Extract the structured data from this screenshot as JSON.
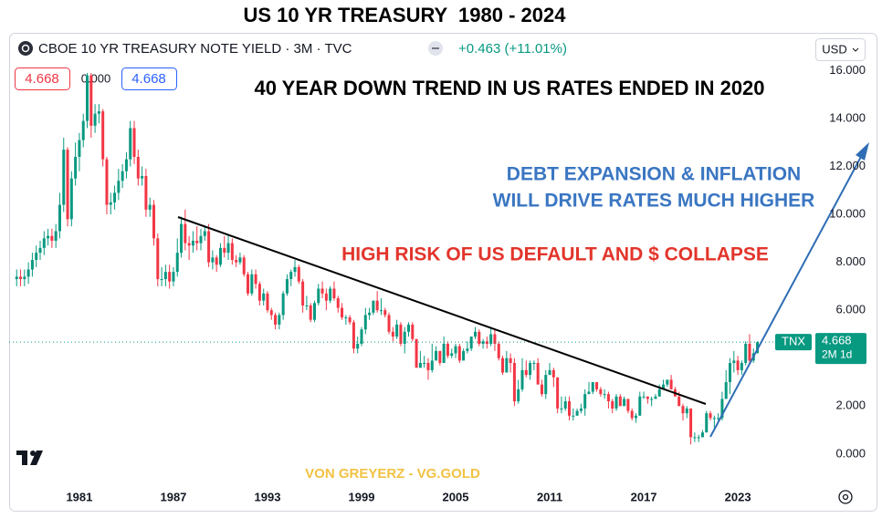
{
  "header": {
    "title": "US 10 YR TREASURY  1980 - 2024",
    "symbol": "CBOE 10 YR TREASURY NOTE YIELD · 3M · TVC",
    "change": "+0.463 (+11.01%)",
    "currency": "USD",
    "spread": "0.000",
    "ticker": "TNX",
    "countdown": "2M 1d"
  },
  "chart_data": {
    "type": "candlestick",
    "annotations": [
      "40 YEAR DOWN TREND IN US RATES ENDED IN 2020",
      "DEBT EXPANSION & INFLATION",
      "WILL DRIVE RATES MUCH HIGHER",
      "HIGH RISK OF US DEFAULT AND $ COLLAPSE",
      "VON GREYERZ - VG.GOLD"
    ],
    "up_color": "#089981",
    "down_color": "#f23645",
    "xlim": [
      1976.52,
      2027.77
    ],
    "xticks": [
      1981,
      1987,
      1993,
      1999,
      2005,
      2011,
      2017,
      2023
    ],
    "ylim": [
      -1.3,
      17.5
    ],
    "yticks": [
      {
        "value": 0,
        "label": "0.000"
      },
      {
        "value": 2,
        "label": "2.000"
      },
      {
        "value": 4,
        "label": "4.000"
      },
      {
        "value": 6,
        "label": "6.000"
      },
      {
        "value": 8,
        "label": "8.000"
      },
      {
        "value": 10,
        "label": "10.000"
      },
      {
        "value": 12,
        "label": "12.000"
      },
      {
        "value": 14,
        "label": "14.000"
      },
      {
        "value": 16,
        "label": "16.000"
      }
    ],
    "grid": false,
    "x": [
      1977,
      1977.25,
      1977.5,
      1977.75,
      1978,
      1978.25,
      1978.5,
      1978.75,
      1979,
      1979.25,
      1979.5,
      1979.75,
      1980,
      1980.25,
      1980.5,
      1980.75,
      1981,
      1981.25,
      1981.5,
      1981.75,
      1982,
      1982.25,
      1982.5,
      1982.75,
      1983,
      1983.25,
      1983.5,
      1983.75,
      1984,
      1984.25,
      1984.5,
      1984.75,
      1985,
      1985.25,
      1985.5,
      1985.75,
      1986,
      1986.25,
      1986.5,
      1986.75,
      1987,
      1987.25,
      1987.5,
      1987.75,
      1988,
      1988.25,
      1988.5,
      1988.75,
      1989,
      1989.25,
      1989.5,
      1989.75,
      1990,
      1990.25,
      1990.5,
      1990.75,
      1991,
      1991.25,
      1991.5,
      1991.75,
      1992,
      1992.25,
      1992.5,
      1992.75,
      1993,
      1993.25,
      1993.5,
      1993.75,
      1994,
      1994.25,
      1994.5,
      1994.75,
      1995,
      1995.25,
      1995.5,
      1995.75,
      1996,
      1996.25,
      1996.5,
      1996.75,
      1997,
      1997.25,
      1997.5,
      1997.75,
      1998,
      1998.25,
      1998.5,
      1998.75,
      1999,
      1999.25,
      1999.5,
      1999.75,
      2000,
      2000.25,
      2000.5,
      2000.75,
      2001,
      2001.25,
      2001.5,
      2001.75,
      2002,
      2002.25,
      2002.5,
      2002.75,
      2003,
      2003.25,
      2003.5,
      2003.75,
      2004,
      2004.25,
      2004.5,
      2004.75,
      2005,
      2005.25,
      2005.5,
      2005.75,
      2006,
      2006.25,
      2006.5,
      2006.75,
      2007,
      2007.25,
      2007.5,
      2007.75,
      2008,
      2008.25,
      2008.5,
      2008.75,
      2009,
      2009.25,
      2009.5,
      2009.75,
      2010,
      2010.25,
      2010.5,
      2010.75,
      2011,
      2011.25,
      2011.5,
      2011.75,
      2012,
      2012.25,
      2012.5,
      2012.75,
      2013,
      2013.25,
      2013.5,
      2013.75,
      2014,
      2014.25,
      2014.5,
      2014.75,
      2015,
      2015.25,
      2015.5,
      2015.75,
      2016,
      2016.25,
      2016.5,
      2016.75,
      2017,
      2017.25,
      2017.5,
      2017.75,
      2018,
      2018.25,
      2018.5,
      2018.75,
      2019,
      2019.25,
      2019.5,
      2019.75,
      2020,
      2020.25,
      2020.5,
      2020.75,
      2021,
      2021.25,
      2021.5,
      2021.75,
      2022,
      2022.25,
      2022.5,
      2022.75,
      2023,
      2023.25,
      2023.5,
      2023.75,
      2024,
      2024.25
    ],
    "open": [
      7.3,
      7.4,
      7.3,
      7.4,
      7.7,
      8.1,
      8.4,
      8.6,
      9.0,
      9.1,
      8.9,
      9.3,
      10.4,
      12.7,
      9.8,
      11.5,
      12.4,
      13.1,
      13.9,
      15.8,
      13.7,
      14.2,
      14.3,
      12.3,
      10.4,
      10.5,
      10.9,
      11.4,
      11.8,
      12.3,
      13.6,
      12.4,
      11.5,
      11.6,
      10.2,
      10.4,
      9.0,
      7.3,
      7.3,
      7.6,
      7.2,
      7.6,
      8.4,
      9.6,
      8.8,
      8.7,
      8.9,
      8.8,
      9.1,
      9.3,
      8.0,
      8.2,
      7.9,
      8.6,
      8.4,
      8.8,
      8.1,
      8.0,
      8.2,
      7.5,
      6.7,
      7.5,
      7.1,
      6.4,
      6.7,
      6.0,
      5.8,
      5.4,
      5.8,
      6.7,
      7.3,
      7.6,
      7.8,
      7.2,
      6.2,
      6.2,
      5.6,
      6.3,
      6.9,
      6.7,
      6.4,
      6.9,
      6.5,
      6.1,
      5.7,
      5.7,
      5.5,
      4.4,
      4.6,
      5.2,
      5.8,
      5.9,
      6.4,
      6.0,
      6.0,
      5.8,
      5.1,
      4.9,
      5.4,
      4.6,
      5.1,
      5.4,
      4.8,
      3.6,
      3.8,
      3.8,
      3.5,
      3.9,
      4.3,
      3.8,
      4.6,
      4.1,
      4.2,
      4.5,
      3.9,
      4.3,
      4.4,
      4.9,
      5.1,
      4.6,
      4.7,
      4.6,
      5.0,
      4.6,
      4.0,
      3.4,
      4.0,
      3.8,
      2.2,
      2.7,
      3.5,
      3.3,
      3.8,
      3.8,
      2.9,
      2.5,
      3.3,
      3.5,
      3.2,
      1.9,
      1.9,
      2.2,
      1.6,
      1.6,
      1.8,
      1.9,
      2.5,
      2.6,
      3.0,
      2.7,
      2.5,
      2.5,
      2.2,
      1.9,
      2.4,
      2.0,
      2.3,
      1.8,
      1.5,
      1.6,
      2.4,
      2.4,
      2.3,
      2.3,
      2.4,
      2.7,
      2.9,
      3.1,
      2.7,
      2.4,
      2.0,
      1.7,
      1.9,
      0.7,
      0.7,
      0.7,
      0.9,
      1.7,
      1.5,
      1.5,
      1.5,
      2.3,
      3.0,
      3.8,
      3.9,
      3.5,
      3.8,
      4.6,
      3.9,
      4.205
    ],
    "high": [
      7.7,
      7.7,
      7.7,
      8.0,
      8.4,
      8.7,
      8.9,
      9.3,
      9.4,
      9.4,
      9.6,
      10.9,
      13.2,
      12.8,
      11.8,
      13.0,
      13.4,
      14.2,
      15.9,
      15.9,
      14.6,
      14.6,
      14.4,
      12.4,
      10.9,
      11.2,
      11.9,
      12.1,
      12.6,
      13.9,
      13.9,
      12.7,
      12.0,
      11.9,
      10.7,
      10.6,
      9.2,
      7.8,
      7.9,
      7.9,
      7.8,
      9.0,
      9.9,
      10.2,
      9.1,
      9.3,
      9.5,
      9.4,
      9.5,
      9.6,
      8.5,
      8.3,
      8.8,
      9.1,
      9.1,
      9.0,
      8.3,
      8.4,
      8.3,
      7.6,
      7.7,
      7.7,
      7.2,
      6.9,
      6.8,
      6.1,
      5.9,
      5.9,
      6.8,
      7.5,
      7.7,
      8.1,
      7.9,
      7.3,
      6.6,
      6.3,
      6.4,
      7.1,
      7.2,
      6.9,
      7.0,
      7.2,
      6.6,
      6.3,
      5.8,
      5.8,
      5.6,
      4.9,
      5.3,
      6.1,
      6.1,
      6.4,
      6.8,
      6.5,
      6.1,
      5.9,
      5.3,
      5.6,
      5.5,
      5.3,
      5.5,
      5.5,
      4.8,
      4.3,
      4.1,
      4.0,
      4.6,
      4.5,
      4.3,
      4.9,
      4.7,
      4.4,
      4.6,
      4.6,
      4.4,
      4.7,
      4.9,
      5.3,
      5.2,
      4.8,
      4.9,
      5.3,
      5.2,
      4.7,
      4.1,
      4.3,
      4.2,
      4.0,
      3.1,
      4.0,
      3.9,
      3.9,
      3.9,
      4.0,
      3.1,
      3.5,
      3.8,
      3.6,
      3.2,
      2.4,
      2.4,
      2.4,
      1.9,
      1.9,
      2.1,
      2.7,
      3.0,
      3.0,
      3.0,
      2.8,
      2.7,
      2.6,
      2.3,
      2.5,
      2.5,
      2.4,
      2.3,
      1.9,
      1.7,
      2.6,
      2.6,
      2.4,
      2.4,
      2.5,
      2.9,
      3.1,
      3.1,
      3.3,
      2.8,
      2.6,
      2.1,
      2.0,
      1.9,
      0.9,
      0.8,
      1.0,
      1.8,
      1.8,
      1.6,
      1.7,
      2.6,
      3.5,
      4.0,
      4.3,
      4.1,
      3.9,
      4.7,
      5.0,
      4.4,
      4.7
    ],
    "low": [
      7.0,
      7.0,
      7.0,
      7.1,
      7.4,
      7.8,
      8.1,
      8.3,
      8.7,
      8.6,
      8.6,
      9.0,
      10.1,
      9.5,
      9.5,
      11.2,
      11.8,
      12.8,
      13.6,
      13.2,
      13.4,
      13.8,
      12.0,
      10.0,
      10.0,
      10.2,
      10.6,
      11.1,
      11.5,
      12.0,
      12.1,
      11.2,
      11.2,
      9.9,
      9.9,
      8.7,
      7.0,
      7.0,
      7.0,
      6.9,
      7.0,
      7.4,
      8.2,
      8.5,
      8.1,
      8.4,
      8.5,
      8.5,
      8.9,
      7.8,
      7.7,
      7.6,
      7.8,
      8.2,
      8.1,
      7.9,
      7.8,
      7.9,
      7.4,
      6.6,
      6.6,
      6.9,
      6.2,
      6.2,
      5.9,
      5.6,
      5.2,
      5.2,
      5.6,
      6.6,
      7.0,
      7.4,
      7.1,
      5.9,
      6.0,
      5.5,
      5.5,
      6.2,
      6.5,
      6.0,
      6.3,
      6.4,
      5.9,
      5.6,
      5.4,
      5.4,
      4.2,
      4.2,
      4.5,
      5.0,
      5.6,
      5.8,
      5.9,
      5.8,
      5.7,
      5.0,
      4.7,
      4.8,
      4.5,
      4.2,
      4.9,
      4.7,
      3.6,
      3.6,
      3.6,
      3.1,
      3.4,
      3.9,
      3.7,
      3.8,
      4.0,
      4.0,
      4.0,
      3.8,
      3.9,
      4.2,
      4.3,
      4.8,
      4.5,
      4.4,
      4.4,
      4.5,
      4.3,
      3.9,
      3.3,
      3.4,
      3.4,
      2.0,
      2.1,
      2.6,
      3.2,
      3.1,
      3.5,
      2.9,
      2.4,
      2.3,
      3.3,
      2.8,
      1.7,
      1.7,
      1.8,
      1.4,
      1.4,
      1.6,
      1.7,
      1.6,
      2.5,
      2.5,
      2.6,
      2.4,
      2.3,
      1.9,
      1.7,
      1.8,
      2.0,
      2.0,
      1.7,
      1.4,
      1.3,
      1.6,
      2.3,
      2.1,
      2.0,
      2.3,
      2.4,
      2.7,
      2.8,
      2.7,
      2.4,
      2.0,
      1.4,
      1.5,
      0.4,
      0.5,
      0.5,
      0.7,
      0.9,
      1.4,
      1.1,
      1.4,
      1.4,
      2.3,
      2.5,
      3.4,
      3.3,
      3.3,
      3.7,
      3.8,
      3.8,
      4.2
    ],
    "close": [
      7.4,
      7.3,
      7.4,
      7.7,
      8.1,
      8.4,
      8.6,
      9.0,
      9.1,
      8.9,
      9.3,
      10.4,
      12.7,
      9.8,
      11.5,
      12.4,
      13.1,
      13.9,
      15.8,
      13.7,
      14.2,
      14.3,
      12.3,
      10.4,
      10.5,
      10.9,
      11.4,
      11.8,
      12.3,
      13.6,
      12.4,
      11.5,
      11.6,
      10.2,
      10.4,
      9.0,
      7.3,
      7.3,
      7.6,
      7.2,
      7.6,
      8.4,
      9.6,
      8.8,
      8.7,
      8.9,
      8.8,
      9.1,
      9.3,
      8.0,
      8.2,
      7.9,
      8.6,
      8.4,
      8.8,
      8.1,
      8.0,
      8.2,
      7.5,
      6.7,
      7.5,
      7.1,
      6.4,
      6.7,
      6.0,
      5.8,
      5.4,
      5.8,
      6.7,
      7.3,
      7.6,
      7.8,
      7.2,
      6.2,
      6.2,
      5.6,
      6.3,
      6.9,
      6.7,
      6.4,
      6.9,
      6.5,
      6.1,
      5.7,
      5.7,
      5.5,
      4.4,
      4.6,
      5.2,
      5.8,
      5.9,
      6.4,
      6.0,
      6.0,
      5.8,
      5.1,
      4.9,
      5.4,
      4.6,
      5.1,
      5.4,
      4.8,
      3.6,
      3.8,
      3.8,
      3.5,
      3.9,
      4.3,
      3.8,
      4.6,
      4.1,
      4.2,
      4.5,
      3.9,
      4.3,
      4.4,
      4.9,
      5.1,
      4.6,
      4.7,
      4.6,
      5.0,
      4.6,
      4.0,
      3.4,
      4.0,
      3.8,
      2.2,
      2.7,
      3.5,
      3.3,
      3.8,
      3.8,
      2.9,
      2.5,
      3.3,
      3.5,
      3.2,
      1.9,
      1.9,
      2.2,
      1.6,
      1.6,
      1.8,
      1.9,
      2.5,
      2.6,
      3.0,
      2.7,
      2.5,
      2.5,
      2.2,
      1.9,
      2.4,
      2.0,
      2.3,
      1.8,
      1.5,
      1.6,
      2.4,
      2.4,
      2.3,
      2.3,
      2.4,
      2.7,
      2.9,
      3.1,
      2.7,
      2.4,
      2.0,
      1.7,
      1.9,
      0.7,
      0.7,
      0.7,
      0.9,
      1.7,
      1.5,
      1.5,
      1.5,
      2.3,
      3.0,
      3.8,
      3.9,
      3.5,
      3.8,
      4.6,
      3.9,
      4.205,
      4.668
    ]
  }
}
